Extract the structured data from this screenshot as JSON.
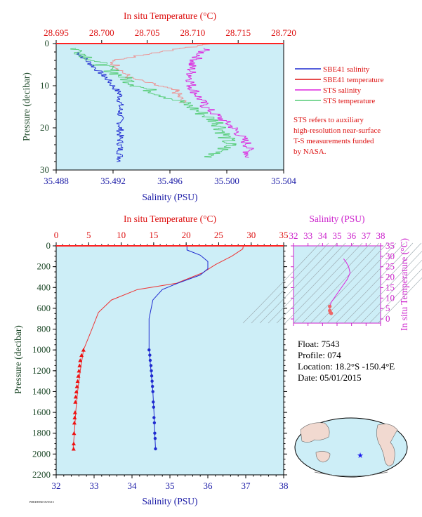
{
  "top_panel": {
    "top_axis_title": "In situ Temperature (°C)",
    "bottom_axis_title": "Salinity (PSU)",
    "left_axis_title": "Pressure (decibar)",
    "legend": [
      {
        "label": "SBE41 salinity",
        "color": "#1f2bd0"
      },
      {
        "label": "SBE41 temperature",
        "color": "#dd1111"
      },
      {
        "label": "STS salinity",
        "color": "#dd22dd"
      },
      {
        "label": "STS temperature",
        "color": "#55cc77"
      }
    ],
    "note_lines": [
      "STS refers to auxiliary",
      "high-resolution near-surface",
      "T-S measurements funded",
      "by NASA."
    ]
  },
  "bottom_panel": {
    "top_axis_title": "In situ Temperature (°C)",
    "bottom_axis_title": "Salinity (PSU)",
    "left_axis_title": "Pressure (decibar)"
  },
  "ts_panel": {
    "top_axis_title": "Salinity (PSU)",
    "right_axis_title": "In situ Temperature (°C)"
  },
  "info": {
    "float": "Float:  7543",
    "profile": "Profile:  074",
    "location": "Location:  18.2°S  -150.4°E",
    "date": "Date:  05/01/2015"
  },
  "footer_tiny": "PDEDITED 05/03/15",
  "colors": {
    "plot_bg": "#cdeef7",
    "red": "#dd1111",
    "blue": "#1f2bd0",
    "magenta": "#dd22dd",
    "green": "#55cc77",
    "pink": "#ee8f8f"
  },
  "chart_data": [
    {
      "type": "line",
      "panel": "top",
      "xlim_salinity": [
        35.488,
        35.504
      ],
      "salinity_ticks": [
        35.488,
        35.492,
        35.496,
        35.5,
        35.504
      ],
      "xlim_temperature": [
        28.695,
        28.72
      ],
      "temperature_ticks": [
        28.695,
        28.7,
        28.705,
        28.71,
        28.715,
        28.72
      ],
      "ylim_pressure": [
        30,
        0
      ],
      "pressure_ticks": [
        0,
        10,
        20,
        30
      ],
      "series": [
        {
          "name": "SBE41 salinity",
          "x": [
            35.4895,
            35.4905,
            35.4915,
            35.4925,
            35.4925,
            35.4925,
            35.4925,
            35.4925
          ],
          "y": [
            2,
            5,
            8,
            12,
            16,
            20,
            24,
            28
          ]
        },
        {
          "name": "SBE41 temperature",
          "x": [
            28.712,
            28.701,
            28.703,
            28.708,
            28.709
          ],
          "y": [
            0,
            4,
            8,
            11,
            14
          ]
        },
        {
          "name": "STS salinity",
          "x": [
            35.4985,
            35.4975,
            35.4975,
            35.4985,
            35.5005,
            35.5015,
            35.5015
          ],
          "y": [
            1,
            5,
            10,
            15,
            20,
            24,
            27
          ]
        },
        {
          "name": "STS temperature",
          "x": [
            28.697,
            28.7,
            28.704,
            28.709,
            28.713,
            28.714,
            28.712
          ],
          "y": [
            1,
            5,
            10,
            14,
            19,
            24,
            27
          ]
        }
      ]
    },
    {
      "type": "line",
      "panel": "bottom",
      "xlim_salinity": [
        32,
        38
      ],
      "salinity_ticks": [
        32,
        33,
        34,
        35,
        36,
        37,
        38
      ],
      "xlim_temperature": [
        0,
        35
      ],
      "temperature_ticks": [
        0,
        5,
        10,
        15,
        20,
        25,
        30,
        35
      ],
      "ylim_pressure": [
        2200,
        0
      ],
      "pressure_ticks": [
        0,
        200,
        400,
        600,
        800,
        1000,
        1200,
        1400,
        1600,
        1800,
        2000,
        2200
      ],
      "series": [
        {
          "name": "temperature",
          "x": [
            28.8,
            28.7,
            27.0,
            24.5,
            22.5,
            18.5,
            12.5,
            8.5,
            6.5,
            5.5,
            4.2,
            3.7,
            3.3,
            3.0,
            2.8,
            2.6
          ],
          "y": [
            0,
            30,
            100,
            180,
            260,
            360,
            420,
            520,
            640,
            800,
            1000,
            1200,
            1400,
            1600,
            1800,
            1950
          ]
        },
        {
          "name": "salinity",
          "x": [
            35.45,
            35.45,
            35.8,
            36.0,
            36.0,
            35.8,
            35.2,
            34.8,
            34.55,
            34.45,
            34.45,
            34.5,
            34.55,
            34.58,
            34.6,
            34.62
          ],
          "y": [
            0,
            40,
            90,
            150,
            220,
            280,
            360,
            420,
            520,
            700,
            1000,
            1200,
            1400,
            1600,
            1800,
            1950
          ]
        },
        {
          "name": "temperature (bottle)",
          "x": [
            4.2,
            3.9,
            3.7,
            3.6,
            3.5,
            3.4,
            3.3,
            3.2,
            3.1,
            3.0,
            2.95,
            2.9,
            2.85,
            2.8,
            2.75,
            2.7,
            2.68
          ],
          "y": [
            1000,
            1050,
            1100,
            1150,
            1200,
            1250,
            1300,
            1350,
            1400,
            1450,
            1500,
            1600,
            1650,
            1700,
            1800,
            1900,
            1950
          ]
        },
        {
          "name": "salinity (bottle)",
          "x": [
            34.45,
            34.47,
            34.48,
            34.5,
            34.51,
            34.52,
            34.53,
            34.54,
            34.55,
            34.56,
            34.57,
            34.58,
            34.59,
            34.6,
            34.61,
            34.62
          ],
          "y": [
            1000,
            1050,
            1100,
            1150,
            1200,
            1250,
            1300,
            1350,
            1400,
            1500,
            1550,
            1650,
            1700,
            1800,
            1850,
            1950
          ]
        }
      ]
    },
    {
      "type": "scatter",
      "panel": "ts",
      "xlim_salinity": [
        32,
        38
      ],
      "salinity_ticks": [
        32,
        33,
        34,
        35,
        36,
        37,
        38
      ],
      "ylim_temperature": [
        -2,
        35
      ],
      "temperature_ticks": [
        0,
        5,
        10,
        15,
        20,
        25,
        30,
        35
      ],
      "x": [
        35.45,
        35.6,
        35.8,
        35.9,
        35.7,
        35.3,
        34.9,
        34.6,
        34.5,
        34.5,
        34.55,
        34.6
      ],
      "y": [
        28.8,
        27.5,
        25,
        22,
        19,
        15,
        11,
        8,
        6,
        4,
        3,
        2.7
      ]
    }
  ]
}
